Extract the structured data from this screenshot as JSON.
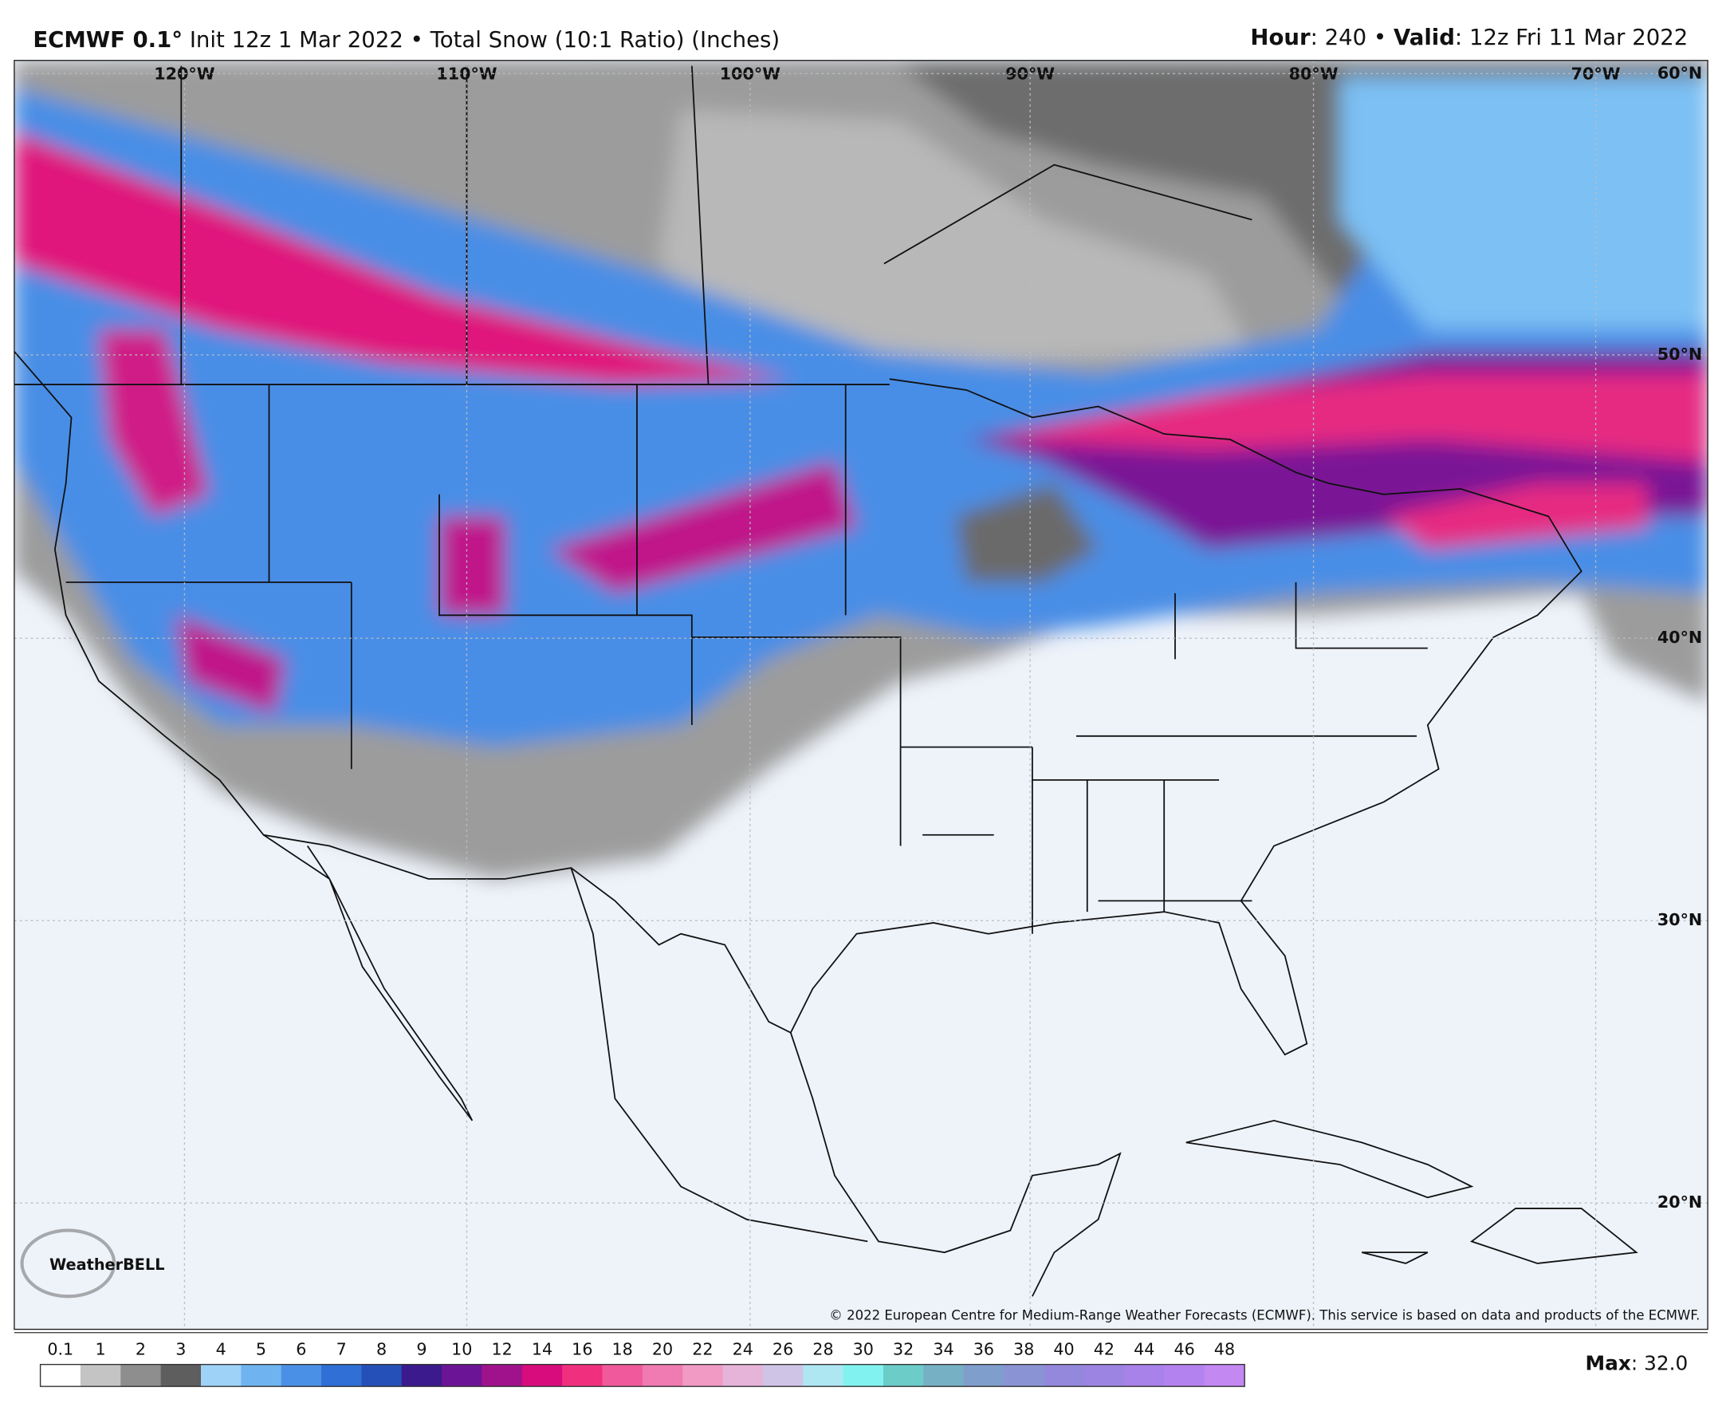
{
  "header": {
    "model": "ECMWF 0.1°",
    "description": "Init 12z 1 Mar 2022 • Total Snow (10:1 Ratio) (Inches)",
    "hour_label": "Hour",
    "hour_value": ": 240",
    "separator": "•",
    "valid_label": "Valid",
    "valid_value": ": 12z Fri 11 Mar 2022"
  },
  "map": {
    "longitude_labels": [
      "120°W",
      "110°W",
      "100°W",
      "90°W",
      "80°W",
      "70°W"
    ],
    "latitude_labels": [
      "60°N",
      "50°N",
      "40°N",
      "30°N",
      "20°N"
    ],
    "logo": "WeatherBELL",
    "copyright": "© 2022 European Centre for Medium-Range Weather Forecasts (ECMWF). This service is based on data and products of the ECMWF."
  },
  "colorbar": {
    "ticks": [
      0.1,
      1,
      2,
      3,
      4,
      5,
      6,
      7,
      8,
      9,
      10,
      12,
      14,
      16,
      18,
      20,
      22,
      24,
      26,
      28,
      30,
      32,
      34,
      36,
      38,
      40,
      42,
      44,
      46,
      48
    ],
    "colors": [
      "#ffffff",
      "#c4c4c4",
      "#8e8e8e",
      "#5e5e5e",
      "#9fd2f7",
      "#6fb4f0",
      "#4a90e6",
      "#2f6fd6",
      "#2450b8",
      "#3a1a8c",
      "#6c1496",
      "#a0128c",
      "#d80c7c",
      "#f0307e",
      "#f05a9c",
      "#f07ab2",
      "#f09ac4",
      "#e6b4d8",
      "#cfc4e6",
      "#aee6f2",
      "#82f2f0",
      "#6cccc8",
      "#76b0c4",
      "#809ecc",
      "#8a94d4",
      "#9488dc",
      "#9c84e2",
      "#a882e8",
      "#b482ee",
      "#c488f2"
    ],
    "max_label": "Max",
    "max_value": ": 32.0"
  }
}
